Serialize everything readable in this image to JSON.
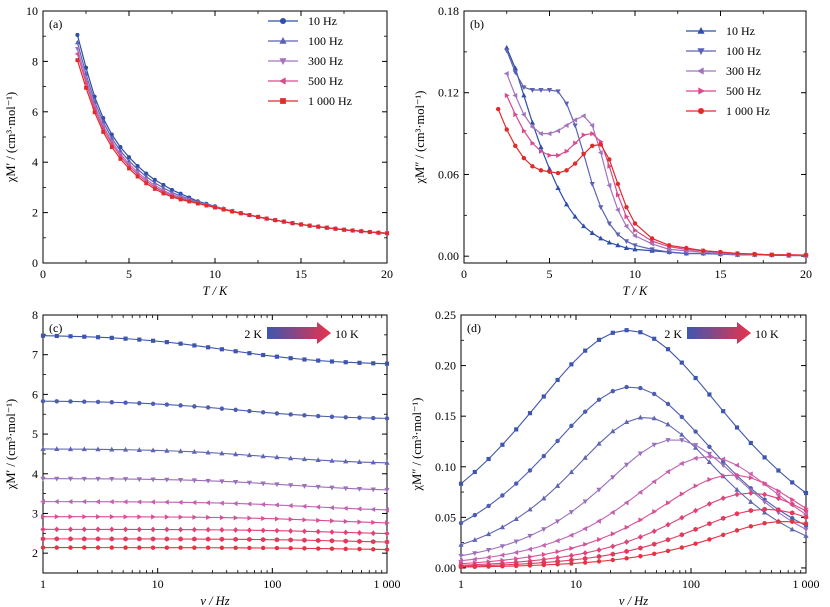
{
  "chart_data": [
    {
      "id": "a",
      "type": "line",
      "panel_label": "(a)",
      "xlabel": "T / K",
      "ylabel": "χM′ / (cm³·mol⁻¹)",
      "xlim": [
        0,
        20
      ],
      "ylim": [
        0,
        10
      ],
      "xticks": [
        0,
        5,
        10,
        15,
        20
      ],
      "yticks": [
        0,
        2,
        4,
        6,
        8,
        10
      ],
      "xtick_labels": [
        "0",
        "5",
        "10",
        "15",
        "20"
      ],
      "ytick_labels": [
        "0",
        "2",
        "4",
        "6",
        "8",
        "10"
      ],
      "legend": "top-right",
      "series": [
        {
          "name": "10 Hz",
          "color": "#2E4FA8",
          "marker": "circle",
          "x": [
            2.0,
            2.5,
            3.0,
            3.5,
            4.0,
            4.5,
            5.0,
            5.5,
            6.0,
            6.5,
            7.0,
            7.5,
            8.0,
            8.5,
            9.0,
            9.5,
            10,
            10.5,
            11,
            11.5,
            12,
            12.5,
            13,
            13.5,
            14,
            14.5,
            15,
            15.5,
            16,
            16.5,
            17,
            17.5,
            18,
            18.5,
            19,
            19.5,
            20
          ],
          "y": [
            9.05,
            7.75,
            6.6,
            5.75,
            5.1,
            4.6,
            4.2,
            3.85,
            3.55,
            3.3,
            3.1,
            2.9,
            2.75,
            2.6,
            2.45,
            2.35,
            2.25,
            2.15,
            2.06,
            1.98,
            1.9,
            1.83,
            1.76,
            1.7,
            1.64,
            1.58,
            1.53,
            1.48,
            1.44,
            1.4,
            1.36,
            1.32,
            1.29,
            1.26,
            1.23,
            1.2,
            1.18
          ]
        },
        {
          "name": "100 Hz",
          "color": "#5B62B3",
          "marker": "triangle-up",
          "x": [
            2.0,
            2.5,
            3.0,
            3.5,
            4.0,
            4.5,
            5.0,
            5.5,
            6.0,
            6.5,
            7.0,
            7.5,
            8.0,
            8.5,
            9.0,
            9.5,
            10,
            10.5,
            11,
            11.5,
            12,
            12.5,
            13,
            13.5,
            14,
            14.5,
            15,
            15.5,
            16,
            16.5,
            17,
            17.5,
            18,
            18.5,
            19,
            19.5,
            20
          ],
          "y": [
            8.75,
            7.5,
            6.4,
            5.6,
            4.95,
            4.45,
            4.05,
            3.72,
            3.43,
            3.18,
            2.98,
            2.8,
            2.66,
            2.54,
            2.43,
            2.33,
            2.24,
            2.15,
            2.06,
            1.98,
            1.9,
            1.83,
            1.76,
            1.7,
            1.64,
            1.58,
            1.53,
            1.48,
            1.44,
            1.4,
            1.36,
            1.32,
            1.29,
            1.26,
            1.23,
            1.2,
            1.18
          ]
        },
        {
          "name": "300 Hz",
          "color": "#A174C0",
          "marker": "triangle-down",
          "x": [
            2.0,
            2.5,
            3.0,
            3.5,
            4.0,
            4.5,
            5.0,
            5.5,
            6.0,
            6.5,
            7.0,
            7.5,
            8.0,
            8.5,
            9.0,
            9.5,
            10,
            10.5,
            11,
            11.5,
            12,
            12.5,
            13,
            13.5,
            14,
            14.5,
            15,
            15.5,
            16,
            16.5,
            17,
            17.5,
            18,
            18.5,
            19,
            19.5,
            20
          ],
          "y": [
            8.5,
            7.3,
            6.25,
            5.45,
            4.82,
            4.33,
            3.93,
            3.6,
            3.32,
            3.08,
            2.88,
            2.72,
            2.6,
            2.5,
            2.4,
            2.31,
            2.22,
            2.14,
            2.06,
            1.98,
            1.9,
            1.83,
            1.76,
            1.7,
            1.64,
            1.58,
            1.53,
            1.48,
            1.44,
            1.4,
            1.36,
            1.32,
            1.29,
            1.26,
            1.23,
            1.2,
            1.18
          ]
        },
        {
          "name": "500 Hz",
          "color": "#D9498C",
          "marker": "triangle-left",
          "x": [
            2.0,
            2.5,
            3.0,
            3.5,
            4.0,
            4.5,
            5.0,
            5.5,
            6.0,
            6.5,
            7.0,
            7.5,
            8.0,
            8.5,
            9.0,
            9.5,
            10,
            10.5,
            11,
            11.5,
            12,
            12.5,
            13,
            13.5,
            14,
            14.5,
            15,
            15.5,
            16,
            16.5,
            17,
            17.5,
            18,
            18.5,
            19,
            19.5,
            20
          ],
          "y": [
            8.3,
            7.15,
            6.12,
            5.33,
            4.72,
            4.24,
            3.84,
            3.52,
            3.24,
            3.01,
            2.82,
            2.67,
            2.56,
            2.47,
            2.38,
            2.3,
            2.21,
            2.13,
            2.05,
            1.97,
            1.9,
            1.83,
            1.76,
            1.7,
            1.64,
            1.58,
            1.53,
            1.48,
            1.44,
            1.4,
            1.36,
            1.32,
            1.29,
            1.26,
            1.23,
            1.2,
            1.18
          ]
        },
        {
          "name": "1 000 Hz",
          "color": "#E02B2B",
          "marker": "square",
          "x": [
            2.0,
            2.5,
            3.0,
            3.5,
            4.0,
            4.5,
            5.0,
            5.5,
            6.0,
            6.5,
            7.0,
            7.5,
            8.0,
            8.5,
            9.0,
            9.5,
            10,
            10.5,
            11,
            11.5,
            12,
            12.5,
            13,
            13.5,
            14,
            14.5,
            15,
            15.5,
            16,
            16.5,
            17,
            17.5,
            18,
            18.5,
            19,
            19.5,
            20
          ],
          "y": [
            8.05,
            6.95,
            5.98,
            5.2,
            4.6,
            4.13,
            3.75,
            3.43,
            3.16,
            2.94,
            2.76,
            2.62,
            2.52,
            2.44,
            2.36,
            2.28,
            2.2,
            2.12,
            2.04,
            1.97,
            1.9,
            1.83,
            1.76,
            1.7,
            1.64,
            1.58,
            1.53,
            1.48,
            1.44,
            1.4,
            1.36,
            1.32,
            1.29,
            1.26,
            1.23,
            1.2,
            1.18
          ]
        }
      ]
    },
    {
      "id": "b",
      "type": "line",
      "panel_label": "(b)",
      "xlabel": "T / K",
      "ylabel": "χM″ / (cm³·mol⁻¹)",
      "xlim": [
        0,
        20
      ],
      "ylim": [
        -0.005,
        0.18
      ],
      "xticks": [
        0,
        5,
        10,
        15,
        20
      ],
      "yticks": [
        0,
        0.06,
        0.12,
        0.18
      ],
      "xtick_labels": [
        "0",
        "5",
        "10",
        "15",
        "20"
      ],
      "ytick_labels": [
        "0.00",
        "0.06",
        "0.12",
        "0.18"
      ],
      "legend": "top-right",
      "series": [
        {
          "name": "10 Hz",
          "color": "#2E4FA8",
          "marker": "triangle-up",
          "x": [
            2.5,
            3.0,
            3.5,
            4.0,
            4.5,
            5.0,
            5.5,
            6.0,
            6.5,
            7.0,
            7.5,
            8.0,
            8.5,
            9.0,
            9.5,
            10,
            11,
            12,
            13,
            14,
            15,
            16,
            17,
            18,
            19,
            20
          ],
          "y": [
            0.153,
            0.138,
            0.118,
            0.098,
            0.08,
            0.064,
            0.05,
            0.038,
            0.029,
            0.022,
            0.017,
            0.013,
            0.01,
            0.008,
            0.006,
            0.005,
            0.004,
            0.003,
            0.002,
            0.002,
            0.0015,
            0.001,
            0.001,
            0.0008,
            0.0005,
            0.0005
          ]
        },
        {
          "name": "100 Hz",
          "color": "#5B62B3",
          "marker": "triangle-down",
          "x": [
            2.5,
            3.0,
            3.5,
            4.0,
            4.5,
            5.0,
            5.5,
            6.0,
            6.5,
            7.0,
            7.5,
            8.0,
            8.5,
            9.0,
            9.5,
            10,
            11,
            12,
            13,
            14,
            15,
            16,
            17,
            18,
            19,
            20
          ],
          "y": [
            0.151,
            0.135,
            0.124,
            0.122,
            0.122,
            0.122,
            0.121,
            0.112,
            0.096,
            0.075,
            0.053,
            0.036,
            0.024,
            0.016,
            0.011,
            0.008,
            0.005,
            0.003,
            0.002,
            0.002,
            0.0015,
            0.001,
            0.001,
            0.0008,
            0.0005,
            0.0005
          ]
        },
        {
          "name": "300 Hz",
          "color": "#A174C0",
          "marker": "triangle-left",
          "x": [
            2.5,
            3.0,
            3.5,
            4.0,
            4.5,
            5.0,
            5.5,
            6.0,
            6.5,
            7.0,
            7.5,
            8.0,
            8.5,
            9.0,
            9.5,
            10,
            11,
            12,
            13,
            14,
            15,
            16,
            17,
            18,
            19,
            20
          ],
          "y": [
            0.134,
            0.118,
            0.104,
            0.095,
            0.09,
            0.09,
            0.092,
            0.096,
            0.1,
            0.103,
            0.096,
            0.076,
            0.052,
            0.034,
            0.022,
            0.015,
            0.009,
            0.005,
            0.004,
            0.003,
            0.002,
            0.0015,
            0.001,
            0.001,
            0.0008,
            0.0005
          ]
        },
        {
          "name": "500 Hz",
          "color": "#D9498C",
          "marker": "triangle-right",
          "x": [
            2.5,
            3.0,
            3.5,
            4.0,
            4.5,
            5.0,
            5.5,
            6.0,
            6.5,
            7.0,
            7.5,
            8.0,
            8.5,
            9.0,
            9.5,
            10,
            11,
            12,
            13,
            14,
            15,
            16,
            17,
            18,
            19,
            20
          ],
          "y": [
            0.118,
            0.104,
            0.092,
            0.083,
            0.077,
            0.074,
            0.074,
            0.077,
            0.083,
            0.089,
            0.09,
            0.084,
            0.066,
            0.045,
            0.029,
            0.019,
            0.011,
            0.007,
            0.005,
            0.004,
            0.003,
            0.002,
            0.0015,
            0.001,
            0.001,
            0.0008
          ]
        },
        {
          "name": "1 000 Hz",
          "color": "#E02B2B",
          "marker": "circle",
          "x": [
            2.0,
            2.5,
            3.0,
            3.5,
            4.0,
            4.5,
            5.0,
            5.5,
            6.0,
            6.5,
            7.0,
            7.5,
            8.0,
            8.5,
            9.0,
            9.5,
            10,
            11,
            12,
            13,
            14,
            15,
            16,
            17,
            18,
            19,
            20
          ],
          "y": [
            0.108,
            0.093,
            0.081,
            0.072,
            0.066,
            0.063,
            0.062,
            0.061,
            0.063,
            0.068,
            0.075,
            0.081,
            0.082,
            0.071,
            0.053,
            0.036,
            0.024,
            0.013,
            0.008,
            0.006,
            0.004,
            0.003,
            0.002,
            0.0015,
            0.001,
            0.001,
            0.0008
          ]
        }
      ]
    },
    {
      "id": "c",
      "type": "line",
      "panel_label": "(c)",
      "xlabel": "ν / Hz",
      "ylabel": "χM′ / (cm³·mol⁻¹)",
      "xscale": "log",
      "xlim": [
        1,
        1000
      ],
      "ylim": [
        1.5,
        8
      ],
      "xticks": [
        1,
        10,
        100,
        1000
      ],
      "yticks": [
        2,
        3,
        4,
        5,
        6,
        7,
        8
      ],
      "xtick_labels": [
        "1",
        "10",
        "100",
        "1 000"
      ],
      "ytick_labels": [
        "2",
        "3",
        "4",
        "5",
        "6",
        "7",
        "8"
      ],
      "gradient_legend": {
        "start_label": "2 K",
        "end_label": "10 K",
        "start_color": "#3F56B0",
        "end_color": "#E8334A",
        "placement": "top-right"
      },
      "series": [
        {
          "color": "#3E55AF",
          "marker": "square",
          "start": 7.5,
          "end": 6.74,
          "center_log": 1.6
        },
        {
          "color": "#4D5DB2",
          "marker": "circle",
          "start": 5.84,
          "end": 5.37,
          "center_log": 1.7
        },
        {
          "color": "#6064B4",
          "marker": "triangle-up",
          "start": 4.63,
          "end": 4.24,
          "center_log": 1.95
        },
        {
          "color": "#9A70BC",
          "marker": "triangle-down",
          "start": 3.88,
          "end": 3.55,
          "center_log": 2.15
        },
        {
          "color": "#C262B0",
          "marker": "triangle-left",
          "start": 3.3,
          "end": 3.04,
          "center_log": 2.35
        },
        {
          "color": "#D94F95",
          "marker": "triangle-right",
          "start": 2.92,
          "end": 2.71,
          "center_log": 2.5
        },
        {
          "color": "#E0427A",
          "marker": "diamond",
          "start": 2.6,
          "end": 2.45,
          "center_log": 2.6
        },
        {
          "color": "#E23A5E",
          "marker": "hexagon",
          "start": 2.36,
          "end": 2.24,
          "center_log": 2.7
        },
        {
          "color": "#E43344",
          "marker": "circle",
          "start": 2.14,
          "end": 2.06,
          "center_log": 2.8
        }
      ]
    },
    {
      "id": "d",
      "type": "line",
      "panel_label": "(d)",
      "xlabel": "ν / Hz",
      "ylabel": "χM″ / (cm³·mol⁻¹)",
      "xscale": "log",
      "xlim": [
        1,
        1000
      ],
      "ylim": [
        -0.005,
        0.25
      ],
      "xticks": [
        1,
        10,
        100,
        1000
      ],
      "yticks": [
        0,
        0.05,
        0.1,
        0.15,
        0.2,
        0.25
      ],
      "xtick_labels": [
        "1",
        "10",
        "100",
        "1 000"
      ],
      "ytick_labels": [
        "0.00",
        "0.05",
        "0.10",
        "0.15",
        "0.20",
        "0.25"
      ],
      "gradient_legend": {
        "start_label": "2 K",
        "end_label": "10 K",
        "start_color": "#3F56B0",
        "end_color": "#E8334A",
        "placement": "top-right"
      },
      "series": [
        {
          "color": "#3E55AF",
          "marker": "square",
          "peak_nu": 28,
          "peak_val": 0.235,
          "width": 0.98,
          "base": 0.0
        },
        {
          "color": "#4D5DB2",
          "marker": "circle",
          "peak_nu": 30,
          "peak_val": 0.179,
          "width": 0.82,
          "base": 0.0
        },
        {
          "color": "#6064B4",
          "marker": "triangle-up",
          "peak_nu": 40,
          "peak_val": 0.149,
          "width": 0.72,
          "base": 0.0
        },
        {
          "color": "#9A70BC",
          "marker": "triangle-down",
          "peak_nu": 72,
          "peak_val": 0.127,
          "width": 0.7,
          "base": 0.0
        },
        {
          "color": "#C262B0",
          "marker": "triangle-left",
          "peak_nu": 140,
          "peak_val": 0.11,
          "width": 0.72,
          "base": 0.0
        },
        {
          "color": "#D94F95",
          "marker": "triangle-right",
          "peak_nu": 230,
          "peak_val": 0.092,
          "width": 0.72,
          "base": 0.0
        },
        {
          "color": "#E0427A",
          "marker": "diamond",
          "peak_nu": 330,
          "peak_val": 0.074,
          "width": 0.72,
          "base": 0.0
        },
        {
          "color": "#E23A5E",
          "marker": "hexagon",
          "peak_nu": 450,
          "peak_val": 0.058,
          "width": 0.72,
          "base": 0.0
        },
        {
          "color": "#E43344",
          "marker": "circle",
          "peak_nu": 650,
          "peak_val": 0.046,
          "width": 0.7,
          "base": 0.0
        }
      ]
    }
  ]
}
